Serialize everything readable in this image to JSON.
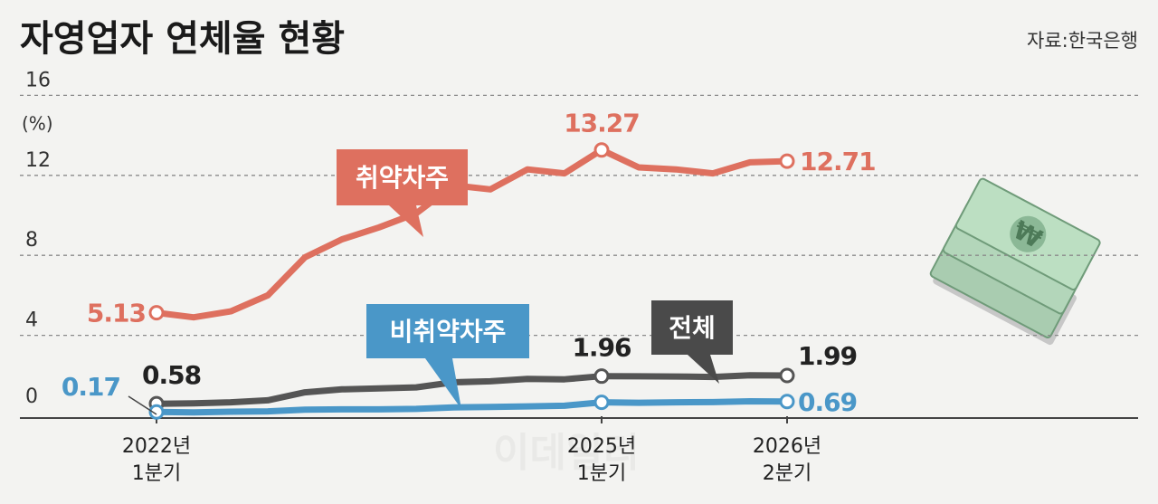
{
  "title": "자영업자 연체율 현황",
  "source": "자료:한국은행",
  "watermark": "이데일리",
  "colors": {
    "vulnerable": "#de705f",
    "total": "#555555",
    "nonvulnerable": "#4a97c8"
  },
  "chart_data": {
    "type": "line",
    "y_unit": "(%)",
    "ylim": [
      0,
      16
    ],
    "yticks": [
      0,
      4,
      8,
      12,
      16
    ],
    "x_ticks": [
      {
        "index": 0,
        "line1": "2022년",
        "line2": "1분기"
      },
      {
        "index": 12,
        "line1": "2025년",
        "line2": "1분기"
      },
      {
        "index": 17,
        "line1": "2026년",
        "line2": "2분기"
      }
    ],
    "grid": true,
    "series": [
      {
        "name": "취약차주",
        "color": "#de705f",
        "values": [
          5.13,
          4.9,
          5.2,
          6.0,
          7.9,
          8.8,
          9.4,
          10.1,
          11.5,
          11.3,
          12.3,
          12.1,
          13.27,
          12.4,
          12.3,
          12.1,
          12.65,
          12.71
        ],
        "labels": [
          {
            "index": 0,
            "text": "5.13"
          },
          {
            "index": 12,
            "text": "13.27"
          },
          {
            "index": 17,
            "text": "12.71"
          }
        ]
      },
      {
        "name": "전체",
        "color": "#555555",
        "values": [
          0.58,
          0.6,
          0.65,
          0.75,
          1.15,
          1.3,
          1.35,
          1.4,
          1.65,
          1.7,
          1.82,
          1.8,
          1.96,
          1.95,
          1.94,
          1.92,
          2.0,
          1.99
        ],
        "labels": [
          {
            "index": 0,
            "text": "0.58"
          },
          {
            "index": 12,
            "text": "1.96"
          },
          {
            "index": 17,
            "text": "1.99"
          }
        ]
      },
      {
        "name": "비취약차주",
        "color": "#4a97c8",
        "values": [
          0.17,
          0.15,
          0.18,
          0.2,
          0.28,
          0.3,
          0.3,
          0.32,
          0.4,
          0.42,
          0.45,
          0.48,
          0.65,
          0.63,
          0.65,
          0.66,
          0.7,
          0.69
        ],
        "labels": [
          {
            "index": 0,
            "text": "0.17"
          },
          {
            "index": 17,
            "text": "0.69"
          }
        ]
      }
    ]
  }
}
